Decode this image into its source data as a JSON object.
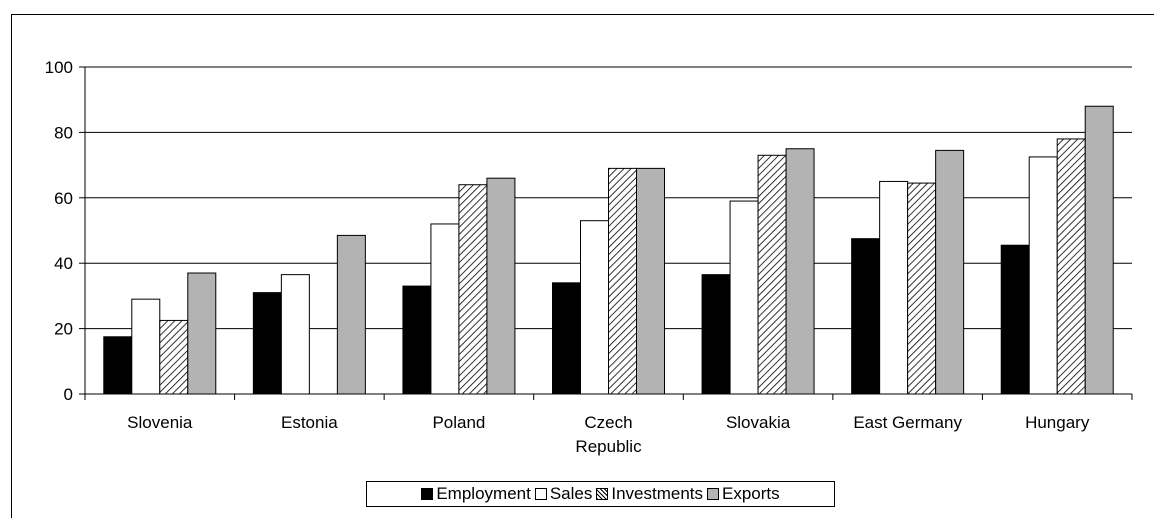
{
  "chart_data": {
    "type": "bar",
    "categories": [
      "Slovenia",
      "Estonia",
      "Poland",
      "Czech Republic",
      "Slovakia",
      "East Germany",
      "Hungary"
    ],
    "category_lines": [
      [
        "Slovenia"
      ],
      [
        "Estonia"
      ],
      [
        "Poland"
      ],
      [
        "Czech",
        "Republic"
      ],
      [
        "Slovakia"
      ],
      [
        "East Germany"
      ],
      [
        "Hungary"
      ]
    ],
    "series": [
      {
        "name": "Employment",
        "fill": "#000000",
        "pattern": "solid",
        "values": [
          17.5,
          31,
          33,
          34,
          36.5,
          47.5,
          45.5
        ]
      },
      {
        "name": "Sales",
        "fill": "#ffffff",
        "pattern": "solid",
        "values": [
          29,
          36.5,
          52,
          53,
          59,
          65,
          72.5
        ]
      },
      {
        "name": "Investments",
        "fill": "#ffffff",
        "pattern": "diagonal-hatch",
        "values": [
          22.5,
          null,
          64,
          69,
          73,
          64.5,
          78
        ]
      },
      {
        "name": "Exports",
        "fill": "#b3b3b3",
        "pattern": "solid",
        "values": [
          37,
          48.5,
          66,
          69,
          75,
          74.5,
          88
        ]
      }
    ],
    "ylim": [
      0,
      100
    ],
    "yticks": [
      0,
      20,
      40,
      60,
      80,
      100
    ],
    "grid": true,
    "legend_position": "bottom",
    "title": "",
    "xlabel": "",
    "ylabel": ""
  }
}
